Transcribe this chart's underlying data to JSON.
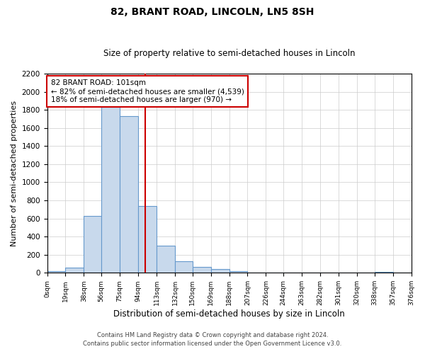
{
  "title": "82, BRANT ROAD, LINCOLN, LN5 8SH",
  "subtitle": "Size of property relative to semi-detached houses in Lincoln",
  "xlabel": "Distribution of semi-detached houses by size in Lincoln",
  "ylabel": "Number of semi-detached properties",
  "bin_edges": [
    0,
    19,
    38,
    56,
    75,
    94,
    113,
    132,
    150,
    169,
    188,
    207,
    226,
    244,
    263,
    282,
    301,
    320,
    338,
    357,
    376
  ],
  "bin_heights": [
    20,
    60,
    630,
    1830,
    1730,
    740,
    300,
    130,
    65,
    40,
    15,
    0,
    0,
    0,
    0,
    0,
    0,
    0,
    10,
    0
  ],
  "bar_color": "#c8d9ec",
  "bar_edge_color": "#6699cc",
  "property_value": 101,
  "vline_color": "#cc0000",
  "annotation_title": "82 BRANT ROAD: 101sqm",
  "annotation_line1": "← 82% of semi-detached houses are smaller (4,539)",
  "annotation_line2": "18% of semi-detached houses are larger (970) →",
  "annotation_box_color": "#ffffff",
  "annotation_box_edge_color": "#cc0000",
  "ylim": [
    0,
    2200
  ],
  "yticks": [
    0,
    200,
    400,
    600,
    800,
    1000,
    1200,
    1400,
    1600,
    1800,
    2000,
    2200
  ],
  "xtick_labels": [
    "0sqm",
    "19sqm",
    "38sqm",
    "56sqm",
    "75sqm",
    "94sqm",
    "113sqm",
    "132sqm",
    "150sqm",
    "169sqm",
    "188sqm",
    "207sqm",
    "226sqm",
    "244sqm",
    "263sqm",
    "282sqm",
    "301sqm",
    "320sqm",
    "338sqm",
    "357sqm",
    "376sqm"
  ],
  "footer_line1": "Contains HM Land Registry data © Crown copyright and database right 2024.",
  "footer_line2": "Contains public sector information licensed under the Open Government Licence v3.0.",
  "grid_color": "#cccccc",
  "background_color": "#ffffff",
  "title_fontsize": 10,
  "subtitle_fontsize": 8.5,
  "ylabel_fontsize": 8,
  "xlabel_fontsize": 8.5
}
